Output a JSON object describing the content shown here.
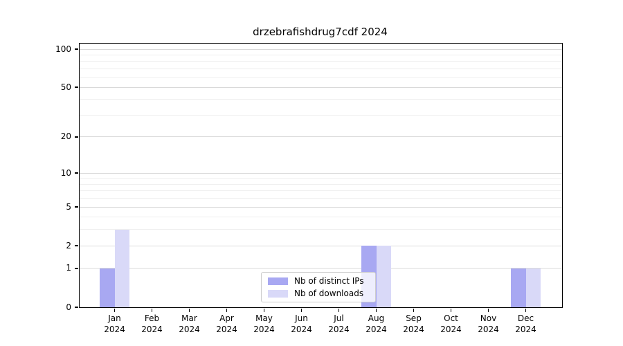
{
  "chart_data": {
    "type": "bar",
    "title": "drzebrafishdrug7cdf 2024",
    "x": {
      "months": [
        "Jan",
        "Feb",
        "Mar",
        "Apr",
        "May",
        "Jun",
        "Jul",
        "Aug",
        "Sep",
        "Oct",
        "Nov",
        "Dec"
      ],
      "year": "2024"
    },
    "categories": [
      "Jan 2024",
      "Feb 2024",
      "Mar 2024",
      "Apr 2024",
      "May 2024",
      "Jun 2024",
      "Jul 2024",
      "Aug 2024",
      "Sep 2024",
      "Oct 2024",
      "Nov 2024",
      "Dec 2024"
    ],
    "series": [
      {
        "name": "Nb of distinct IPs",
        "color": "#a8a8f2",
        "values": [
          1,
          0,
          0,
          0,
          0,
          0,
          0,
          2,
          0,
          0,
          0,
          1
        ]
      },
      {
        "name": "Nb of downloads",
        "color": "#d9d9f8",
        "values": [
          3,
          0,
          0,
          0,
          0,
          0,
          0,
          2,
          0,
          0,
          0,
          1
        ]
      }
    ],
    "yscale": "log10(1+v)",
    "ylim": [
      0,
      110
    ],
    "yticks": [
      100,
      50,
      20,
      10,
      5,
      2,
      1,
      0
    ],
    "ytick_labels": [
      "100",
      "50",
      "20",
      "10",
      "5",
      "2",
      "1",
      "0"
    ],
    "minor_yticks": [
      3,
      4,
      6,
      7,
      8,
      9,
      30,
      40,
      60,
      70,
      80,
      90
    ],
    "grid": "horizontal",
    "legend_position": "lower center inside",
    "colors": {
      "major_grid": "#d9d9d9",
      "minor_grid": "#efefef",
      "axis": "#000000",
      "legend_border": "#cccccc"
    }
  }
}
